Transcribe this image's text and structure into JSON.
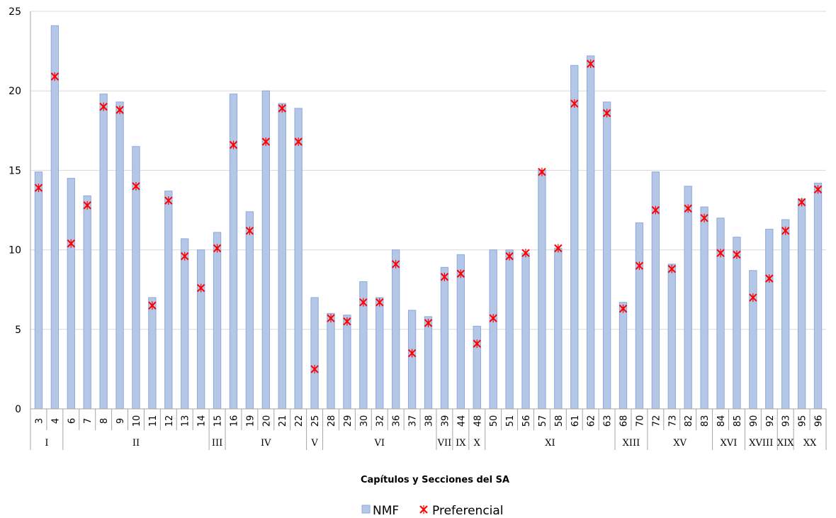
{
  "chart_data": {
    "type": "bar",
    "title": "",
    "xlabel": "Capítulos y Secciones del SA",
    "ylabel": "",
    "ylim": [
      0,
      25
    ],
    "yticks": [
      0,
      5,
      10,
      15,
      20,
      25
    ],
    "grid": "horizontal",
    "legend_position": "bottom",
    "categories": [
      "3",
      "4",
      "6",
      "7",
      "8",
      "9",
      "10",
      "11",
      "12",
      "13",
      "14",
      "15",
      "16",
      "19",
      "20",
      "21",
      "22",
      "25",
      "28",
      "29",
      "30",
      "32",
      "36",
      "37",
      "38",
      "39",
      "44",
      "48",
      "50",
      "51",
      "56",
      "57",
      "58",
      "61",
      "62",
      "63",
      "68",
      "70",
      "72",
      "73",
      "82",
      "83",
      "84",
      "85",
      "90",
      "92",
      "93",
      "95",
      "96"
    ],
    "groups": [
      {
        "label": "I",
        "count": 2
      },
      {
        "label": "II",
        "count": 9
      },
      {
        "label": "III",
        "count": 1
      },
      {
        "label": "IV",
        "count": 5
      },
      {
        "label": "V",
        "count": 1
      },
      {
        "label": "VI",
        "count": 7
      },
      {
        "label": "VII",
        "count": 1
      },
      {
        "label": "IX",
        "count": 1
      },
      {
        "label": "X",
        "count": 1
      },
      {
        "label": "XI",
        "count": 8
      },
      {
        "label": "XIII",
        "count": 2
      },
      {
        "label": "XV",
        "count": 4
      },
      {
        "label": "XVI",
        "count": 2
      },
      {
        "label": "XVIII",
        "count": 2
      },
      {
        "label": "XIX",
        "count": 1
      },
      {
        "label": "XX",
        "count": 2
      }
    ],
    "series": [
      {
        "name": "NMF",
        "kind": "bar",
        "color": "#b4c7e7",
        "values": [
          14.9,
          24.1,
          14.5,
          13.4,
          19.8,
          19.3,
          16.5,
          7.0,
          13.7,
          10.7,
          10.0,
          11.1,
          19.8,
          12.4,
          20.0,
          19.2,
          18.9,
          7.0,
          6.0,
          5.9,
          8.0,
          7.0,
          10.0,
          6.2,
          5.8,
          8.9,
          9.7,
          5.2,
          10.0,
          10.0,
          9.8,
          15.0,
          10.1,
          21.6,
          22.2,
          19.3,
          6.7,
          11.7,
          14.9,
          9.1,
          14.0,
          12.7,
          12.0,
          10.8,
          8.7,
          11.3,
          11.9,
          13.2,
          14.2
        ]
      },
      {
        "name": "Preferencial",
        "kind": "marker",
        "color": "#ff0000",
        "values": [
          13.9,
          20.9,
          10.4,
          12.8,
          19.0,
          18.8,
          14.0,
          6.5,
          13.1,
          9.6,
          7.6,
          10.1,
          16.6,
          11.2,
          16.8,
          18.9,
          16.8,
          2.5,
          5.7,
          5.5,
          6.7,
          6.7,
          9.1,
          3.5,
          5.4,
          8.3,
          8.5,
          4.1,
          5.7,
          9.6,
          9.8,
          14.9,
          10.1,
          19.2,
          21.7,
          18.6,
          6.3,
          9.0,
          12.5,
          8.8,
          12.6,
          12.0,
          9.8,
          9.7,
          7.0,
          8.2,
          11.2,
          13.0,
          13.8
        ]
      }
    ]
  }
}
